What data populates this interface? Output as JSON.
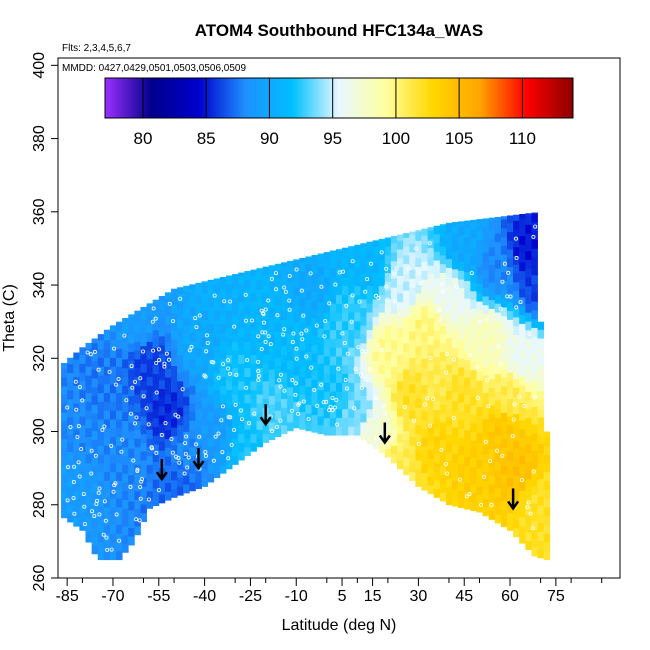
{
  "chart_data": {
    "type": "heatmap",
    "title": "ATOM4 Southbound HFC134a_WAS",
    "annotations": [
      "Flts: 2,3,4,5,6,7",
      "MMDD: 0427,0429,0501,0503,0506,0509"
    ],
    "xlabel": "Latitude (deg N)",
    "ylabel": "Theta (C)",
    "xlim": [
      -88,
      96
    ],
    "ylim": [
      260,
      402
    ],
    "x_ticks": [
      -85,
      -70,
      -55,
      -40,
      -25,
      -10,
      5,
      15,
      30,
      45,
      60,
      75
    ],
    "y_ticks": [
      260,
      280,
      300,
      320,
      340,
      360,
      380,
      400
    ],
    "colorbar": {
      "range": [
        77,
        114
      ],
      "ticks": [
        80,
        85,
        90,
        95,
        100,
        105,
        110
      ],
      "colors": [
        "#9b30ff",
        "#00008b",
        "#0000cd",
        "#1e90ff",
        "#00bfff",
        "#e8f8ff",
        "#ffff9e",
        "#ffd700",
        "#ffa500",
        "#ff0000",
        "#8b0000"
      ]
    },
    "upper_boundary": [
      [
        -87,
        318
      ],
      [
        -80,
        323
      ],
      [
        -70,
        329
      ],
      [
        -60,
        334
      ],
      [
        -50,
        339
      ],
      [
        -40,
        341
      ],
      [
        -30,
        343
      ],
      [
        -20,
        345
      ],
      [
        -10,
        347
      ],
      [
        0,
        349
      ],
      [
        10,
        351
      ],
      [
        20,
        353
      ],
      [
        30,
        355
      ],
      [
        40,
        357
      ],
      [
        50,
        358
      ],
      [
        60,
        359
      ],
      [
        70,
        360
      ],
      [
        72,
        300
      ]
    ],
    "lower_boundary": [
      [
        -87,
        277
      ],
      [
        -80,
        273
      ],
      [
        -75,
        265
      ],
      [
        -68,
        265
      ],
      [
        -63,
        270
      ],
      [
        -58,
        279
      ],
      [
        -50,
        282
      ],
      [
        -40,
        285
      ],
      [
        -30,
        291
      ],
      [
        -20,
        297
      ],
      [
        -10,
        301
      ],
      [
        0,
        299
      ],
      [
        10,
        299
      ],
      [
        20,
        293
      ],
      [
        30,
        285
      ],
      [
        40,
        280
      ],
      [
        50,
        278
      ],
      [
        60,
        273
      ],
      [
        68,
        266
      ],
      [
        72,
        265
      ]
    ],
    "field_points": [
      [
        -80,
        300,
        88
      ],
      [
        -72,
        312,
        87.5
      ],
      [
        -65,
        295,
        88
      ],
      [
        -58,
        318,
        86
      ],
      [
        -52,
        305,
        85.5
      ],
      [
        -48,
        285,
        87
      ],
      [
        -42,
        325,
        90
      ],
      [
        -38,
        300,
        89
      ],
      [
        -30,
        315,
        92
      ],
      [
        -22,
        330,
        91
      ],
      [
        -18,
        305,
        93
      ],
      [
        -10,
        320,
        91.5
      ],
      [
        -5,
        340,
        90
      ],
      [
        2,
        310,
        92
      ],
      [
        8,
        330,
        92.5
      ],
      [
        14,
        345,
        91
      ],
      [
        15,
        300,
        97
      ],
      [
        20,
        322,
        99.5
      ],
      [
        22,
        290,
        101
      ],
      [
        28,
        310,
        102
      ],
      [
        32,
        328,
        100
      ],
      [
        36,
        295,
        103
      ],
      [
        40,
        338,
        96
      ],
      [
        44,
        310,
        102
      ],
      [
        48,
        290,
        103.5
      ],
      [
        52,
        325,
        98
      ],
      [
        55,
        345,
        88
      ],
      [
        58,
        300,
        104
      ],
      [
        62,
        290,
        104.5
      ],
      [
        64,
        320,
        96
      ],
      [
        66,
        350,
        85
      ],
      [
        70,
        340,
        86
      ],
      [
        70,
        280,
        102
      ],
      [
        -84,
        285,
        89
      ],
      [
        -62,
        330,
        89
      ],
      [
        -35,
        335,
        90.5
      ],
      [
        0,
        290,
        93
      ],
      [
        5,
        350,
        91
      ],
      [
        45,
        350,
        90
      ],
      [
        60,
        310,
        101
      ],
      [
        -45,
        295,
        88
      ],
      [
        -25,
        295,
        92
      ],
      [
        10,
        305,
        93.5
      ],
      [
        25,
        340,
        95
      ],
      [
        35,
        315,
        101
      ]
    ],
    "arrows": [
      [
        -54,
        287
      ],
      [
        -42,
        290
      ],
      [
        -20,
        302
      ],
      [
        19,
        297
      ],
      [
        61,
        279
      ]
    ]
  }
}
